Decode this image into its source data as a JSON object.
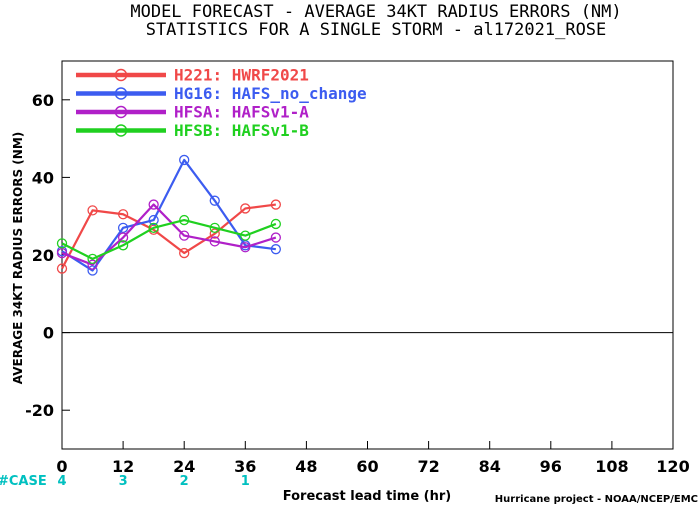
{
  "title_line1": "MODEL FORECAST - AVERAGE 34KT RADIUS ERRORS (NM)",
  "title_line2": "STATISTICS FOR A SINGLE STORM - al172021_ROSE",
  "credit": "Hurricane project - NOAA/NCEP/EMC",
  "case_label": "#CASE",
  "colors": {
    "case": "#00c0c0",
    "zero_line": "#000000"
  },
  "chart_data": {
    "type": "line",
    "xlabel": "Forecast lead time (hr)",
    "ylabel": "AVERAGE 34KT RADIUS ERRORS (NM)",
    "xlim": [
      0,
      120
    ],
    "ylim": [
      -30,
      70
    ],
    "xticks": [
      0,
      12,
      24,
      36,
      48,
      60,
      72,
      84,
      96,
      108,
      120
    ],
    "yticks": [
      -20,
      0,
      20,
      40,
      60
    ],
    "legend_position": "top-left",
    "grid": false,
    "cases": {
      "x": [
        0,
        12,
        24,
        36
      ],
      "values": [
        "4",
        "3",
        "2",
        "1"
      ]
    },
    "series": [
      {
        "name": "H221: HWRF2021",
        "color": "#f04848",
        "x": [
          0,
          6,
          12,
          18,
          24,
          30,
          36,
          42
        ],
        "y": [
          16.5,
          31.5,
          30.5,
          26.5,
          20.5,
          25.5,
          32.0,
          33.0
        ]
      },
      {
        "name": "HG16: HAFS_no_change",
        "color": "#3c5cf0",
        "x": [
          0,
          6,
          12,
          18,
          24,
          30,
          36,
          42
        ],
        "y": [
          21.0,
          16.0,
          27.0,
          29.0,
          44.5,
          34.0,
          22.5,
          21.5
        ]
      },
      {
        "name": "HFSA: HAFSv1-A",
        "color": "#b020c8",
        "x": [
          0,
          6,
          12,
          18,
          24,
          30,
          36,
          42
        ],
        "y": [
          20.5,
          17.5,
          24.5,
          33.0,
          25.0,
          23.5,
          22.0,
          24.5
        ]
      },
      {
        "name": "HFSB: HAFSv1-B",
        "color": "#20d020",
        "x": [
          0,
          6,
          12,
          18,
          24,
          30,
          36,
          42
        ],
        "y": [
          23.0,
          19.0,
          22.5,
          27.0,
          29.0,
          27.0,
          25.0,
          28.0
        ]
      }
    ]
  }
}
